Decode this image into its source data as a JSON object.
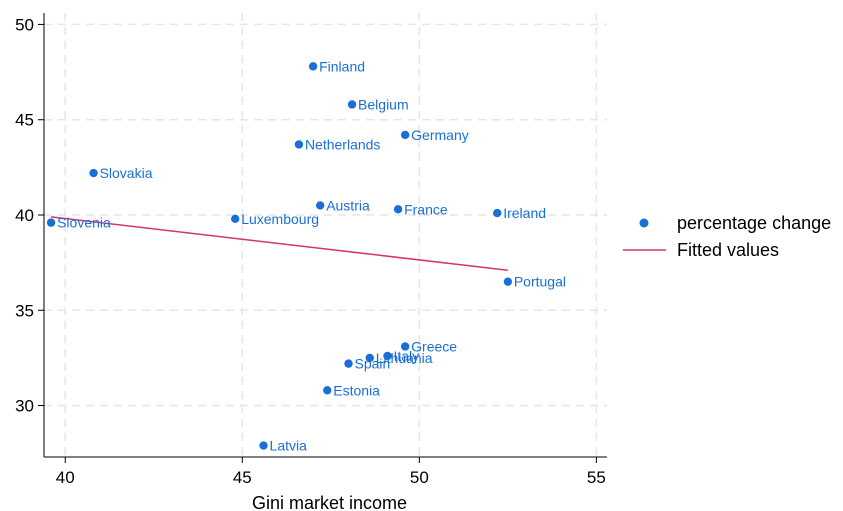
{
  "chart_data": {
    "type": "scatter",
    "xlabel": "Gini market income",
    "ylabel": "",
    "xlim": [
      39.4,
      55.3
    ],
    "ylim": [
      27.3,
      50.6
    ],
    "xticks": [
      "40",
      "45",
      "50",
      "55"
    ],
    "yticks": [
      "30",
      "35",
      "40",
      "45",
      "50"
    ],
    "grid": true,
    "legend_position": "right",
    "colors": {
      "points": "#1a6fd6",
      "fit": "#d6336c",
      "grid": "#e6e6e6",
      "axis": "#000000"
    },
    "series": [
      {
        "name": "percentage change",
        "kind": "scatter",
        "points": [
          {
            "label": "Finland",
            "x": 47.0,
            "y": 47.8
          },
          {
            "label": "Belgium",
            "x": 48.1,
            "y": 45.8
          },
          {
            "label": "Germany",
            "x": 49.6,
            "y": 44.2
          },
          {
            "label": "Netherlands",
            "x": 46.6,
            "y": 43.7
          },
          {
            "label": "Slovakia",
            "x": 40.8,
            "y": 42.2
          },
          {
            "label": "Austria",
            "x": 47.2,
            "y": 40.5
          },
          {
            "label": "France",
            "x": 49.4,
            "y": 40.3
          },
          {
            "label": "Ireland",
            "x": 52.2,
            "y": 40.1
          },
          {
            "label": "Luxembourg",
            "x": 44.8,
            "y": 39.8
          },
          {
            "label": "Slovenia",
            "x": 39.6,
            "y": 39.6
          },
          {
            "label": "Portugal",
            "x": 52.5,
            "y": 36.5
          },
          {
            "label": "Greece",
            "x": 49.6,
            "y": 33.1
          },
          {
            "label": "Lithuania",
            "x": 48.6,
            "y": 32.5
          },
          {
            "label": "Italy",
            "x": 49.1,
            "y": 32.6
          },
          {
            "label": "Spain",
            "x": 48.0,
            "y": 32.2
          },
          {
            "label": "Estonia",
            "x": 47.4,
            "y": 30.8
          },
          {
            "label": "Latvia",
            "x": 45.6,
            "y": 27.9
          }
        ]
      },
      {
        "name": "Fitted values",
        "kind": "line",
        "points": [
          {
            "x": 39.6,
            "y": 39.9
          },
          {
            "x": 52.5,
            "y": 37.1
          }
        ]
      }
    ]
  }
}
